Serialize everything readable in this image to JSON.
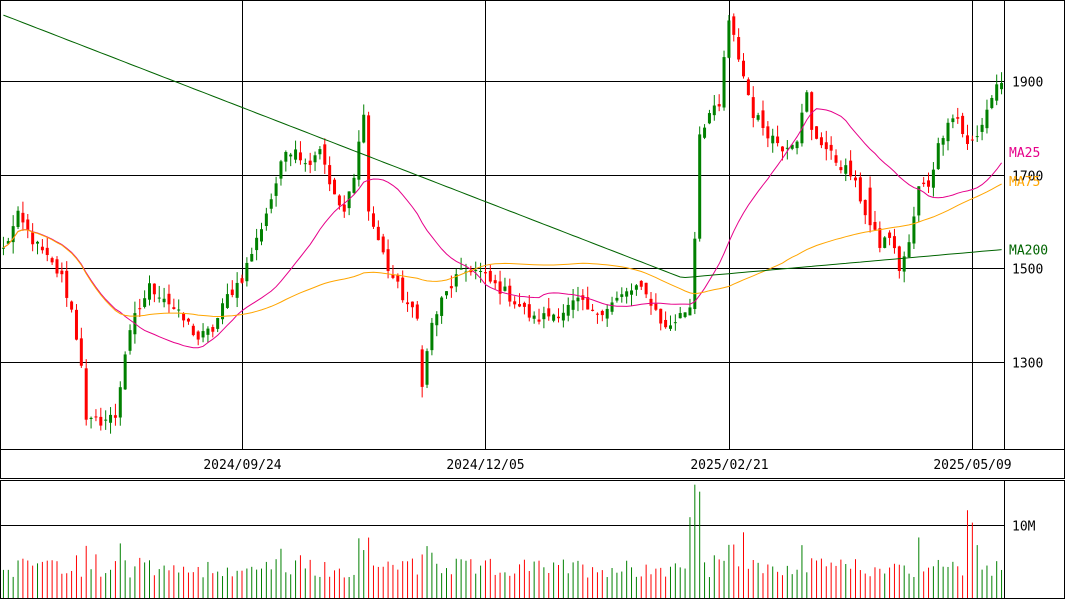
{
  "chart_data": {
    "type": "candlestick",
    "price_axis": {
      "ticks": [
        1300,
        1500,
        1700,
        1900
      ],
      "labels": [
        "1300",
        "1500",
        "1700",
        "1900"
      ],
      "ylim": [
        1115,
        2070
      ]
    },
    "date_axis": {
      "labels": [
        "2024/09/24",
        "2024/12/05",
        "2025/02/21",
        "2025/05/09"
      ],
      "label_index": [
        49,
        99,
        149,
        199
      ]
    },
    "volume_axis": {
      "ticks": [
        10000000
      ],
      "labels": [
        "10M"
      ],
      "ylim": [
        0,
        16000000
      ]
    },
    "moving_averages": [
      {
        "name": "MA25",
        "color": "#e6008a"
      },
      {
        "name": "MA75",
        "color": "#ffa500"
      },
      {
        "name": "MA200",
        "color": "#006400"
      }
    ],
    "colors": {
      "up": "#008000",
      "down": "#ff0000",
      "grid": "#000000",
      "frame": "#000000"
    },
    "anchors": {
      "close": [
        [
          0,
          1540
        ],
        [
          3,
          1610
        ],
        [
          6,
          1560
        ],
        [
          9,
          1520
        ],
        [
          12,
          1480
        ],
        [
          14,
          1410
        ],
        [
          16,
          1300
        ],
        [
          17,
          1170
        ],
        [
          20,
          1175
        ],
        [
          23,
          1185
        ],
        [
          25,
          1320
        ],
        [
          27,
          1395
        ],
        [
          30,
          1460
        ],
        [
          33,
          1440
        ],
        [
          36,
          1400
        ],
        [
          38,
          1380
        ],
        [
          40,
          1350
        ],
        [
          43,
          1370
        ],
        [
          46,
          1440
        ],
        [
          49,
          1480
        ],
        [
          52,
          1560
        ],
        [
          55,
          1650
        ],
        [
          58,
          1750
        ],
        [
          60,
          1760
        ],
        [
          62,
          1720
        ],
        [
          65,
          1760
        ],
        [
          68,
          1650
        ],
        [
          70,
          1620
        ],
        [
          72,
          1690
        ],
        [
          74,
          1840
        ],
        [
          75,
          1620
        ],
        [
          77,
          1560
        ],
        [
          79,
          1500
        ],
        [
          82,
          1440
        ],
        [
          85,
          1390
        ],
        [
          86,
          1260
        ],
        [
          88,
          1380
        ],
        [
          90,
          1430
        ],
        [
          93,
          1480
        ],
        [
          96,
          1500
        ],
        [
          98,
          1490
        ],
        [
          100,
          1470
        ],
        [
          103,
          1450
        ],
        [
          106,
          1420
        ],
        [
          109,
          1390
        ],
        [
          112,
          1400
        ],
        [
          115,
          1410
        ],
        [
          118,
          1430
        ],
        [
          121,
          1400
        ],
        [
          124,
          1420
        ],
        [
          127,
          1440
        ],
        [
          130,
          1460
        ],
        [
          133,
          1430
        ],
        [
          136,
          1370
        ],
        [
          139,
          1400
        ],
        [
          141,
          1420
        ],
        [
          142,
          1570
        ],
        [
          143,
          1790
        ],
        [
          145,
          1830
        ],
        [
          147,
          1840
        ],
        [
          148,
          1950
        ],
        [
          149,
          2020
        ],
        [
          150,
          1990
        ],
        [
          152,
          1910
        ],
        [
          154,
          1830
        ],
        [
          157,
          1790
        ],
        [
          160,
          1760
        ],
        [
          163,
          1780
        ],
        [
          165,
          1870
        ],
        [
          166,
          1790
        ],
        [
          168,
          1770
        ],
        [
          170,
          1740
        ],
        [
          172,
          1720
        ],
        [
          174,
          1700
        ],
        [
          176,
          1650
        ],
        [
          178,
          1590
        ],
        [
          180,
          1550
        ],
        [
          182,
          1570
        ],
        [
          184,
          1500
        ],
        [
          186,
          1550
        ],
        [
          188,
          1670
        ],
        [
          190,
          1680
        ],
        [
          192,
          1760
        ],
        [
          194,
          1820
        ],
        [
          196,
          1820
        ],
        [
          198,
          1760
        ],
        [
          200,
          1780
        ],
        [
          202,
          1840
        ],
        [
          204,
          1890
        ],
        [
          205,
          1900
        ]
      ]
    },
    "ma_end_values": {
      "MA25": 1725,
      "MA75": 1680,
      "MA200": 1540
    }
  }
}
